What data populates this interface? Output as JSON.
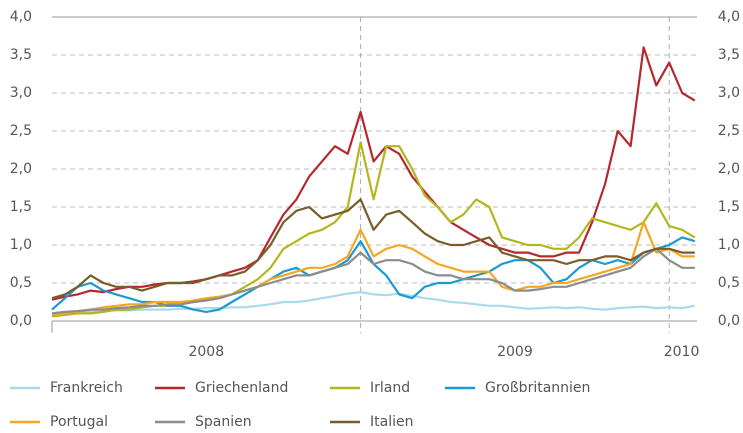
{
  "chart_data": {
    "type": "line",
    "x": [
      2008.0,
      2008.042,
      2008.083,
      2008.125,
      2008.167,
      2008.208,
      2008.25,
      2008.292,
      2008.333,
      2008.375,
      2008.417,
      2008.458,
      2008.5,
      2008.542,
      2008.583,
      2008.625,
      2008.667,
      2008.708,
      2008.75,
      2008.792,
      2008.833,
      2008.875,
      2008.917,
      2008.958,
      2009.0,
      2009.042,
      2009.083,
      2009.125,
      2009.167,
      2009.208,
      2009.25,
      2009.292,
      2009.333,
      2009.375,
      2009.417,
      2009.458,
      2009.5,
      2009.542,
      2009.583,
      2009.625,
      2009.667,
      2009.708,
      2009.75,
      2009.792,
      2009.833,
      2009.875,
      2009.917,
      2009.958,
      2010.0,
      2010.042,
      2010.083
    ],
    "series": [
      {
        "name": "Frankreich",
        "color": "#a9d9ec",
        "values": [
          0.08,
          0.1,
          0.12,
          0.12,
          0.13,
          0.14,
          0.14,
          0.15,
          0.15,
          0.15,
          0.16,
          0.16,
          0.17,
          0.17,
          0.18,
          0.18,
          0.2,
          0.22,
          0.25,
          0.25,
          0.27,
          0.3,
          0.33,
          0.36,
          0.38,
          0.35,
          0.34,
          0.36,
          0.33,
          0.3,
          0.28,
          0.25,
          0.24,
          0.22,
          0.2,
          0.2,
          0.18,
          0.16,
          0.17,
          0.18,
          0.17,
          0.18,
          0.16,
          0.15,
          0.17,
          0.18,
          0.19,
          0.17,
          0.18,
          0.17,
          0.2
        ]
      },
      {
        "name": "Griechenland",
        "color": "#b5282e",
        "values": [
          0.28,
          0.32,
          0.35,
          0.4,
          0.38,
          0.42,
          0.45,
          0.45,
          0.48,
          0.5,
          0.5,
          0.52,
          0.55,
          0.6,
          0.65,
          0.7,
          0.8,
          1.1,
          1.4,
          1.6,
          1.9,
          2.1,
          2.3,
          2.2,
          2.75,
          2.1,
          2.3,
          2.2,
          1.9,
          1.7,
          1.5,
          1.3,
          1.2,
          1.1,
          1.0,
          0.95,
          0.9,
          0.9,
          0.85,
          0.85,
          0.9,
          0.9,
          1.3,
          1.8,
          2.5,
          2.3,
          3.6,
          3.1,
          3.4,
          3.0,
          2.9
        ]
      },
      {
        "name": "Irland",
        "color": "#b3b61c",
        "values": [
          0.06,
          0.08,
          0.1,
          0.1,
          0.12,
          0.15,
          0.15,
          0.18,
          0.2,
          0.2,
          0.22,
          0.25,
          0.28,
          0.3,
          0.35,
          0.45,
          0.55,
          0.7,
          0.95,
          1.05,
          1.15,
          1.2,
          1.3,
          1.5,
          2.35,
          1.6,
          2.3,
          2.3,
          2.0,
          1.65,
          1.5,
          1.3,
          1.4,
          1.6,
          1.5,
          1.1,
          1.05,
          1.0,
          1.0,
          0.95,
          0.95,
          1.1,
          1.35,
          1.3,
          1.25,
          1.2,
          1.3,
          1.55,
          1.25,
          1.2,
          1.1
        ]
      },
      {
        "name": "Großbritannien",
        "color": "#1b9ad2",
        "values": [
          0.15,
          0.3,
          0.45,
          0.5,
          0.4,
          0.35,
          0.3,
          0.25,
          0.25,
          0.2,
          0.2,
          0.15,
          0.12,
          0.15,
          0.25,
          0.35,
          0.45,
          0.55,
          0.65,
          0.7,
          0.6,
          0.65,
          0.7,
          0.8,
          1.05,
          0.75,
          0.6,
          0.35,
          0.3,
          0.45,
          0.5,
          0.5,
          0.55,
          0.6,
          0.65,
          0.75,
          0.8,
          0.8,
          0.7,
          0.5,
          0.55,
          0.7,
          0.8,
          0.75,
          0.8,
          0.75,
          0.9,
          0.95,
          1.0,
          1.1,
          1.05
        ]
      },
      {
        "name": "Portugal",
        "color": "#f5a623",
        "values": [
          0.08,
          0.1,
          0.12,
          0.15,
          0.18,
          0.2,
          0.22,
          0.22,
          0.25,
          0.25,
          0.25,
          0.27,
          0.3,
          0.32,
          0.35,
          0.4,
          0.45,
          0.55,
          0.6,
          0.65,
          0.7,
          0.7,
          0.75,
          0.85,
          1.2,
          0.85,
          0.95,
          1.0,
          0.95,
          0.85,
          0.75,
          0.7,
          0.65,
          0.65,
          0.65,
          0.45,
          0.4,
          0.45,
          0.45,
          0.5,
          0.5,
          0.55,
          0.6,
          0.65,
          0.7,
          0.75,
          1.3,
          0.9,
          0.95,
          0.85,
          0.85
        ]
      },
      {
        "name": "Spanien",
        "color": "#8c8c8c",
        "values": [
          0.1,
          0.12,
          0.13,
          0.15,
          0.15,
          0.17,
          0.18,
          0.2,
          0.2,
          0.22,
          0.22,
          0.25,
          0.27,
          0.3,
          0.35,
          0.4,
          0.45,
          0.5,
          0.55,
          0.6,
          0.6,
          0.65,
          0.7,
          0.75,
          0.9,
          0.75,
          0.8,
          0.8,
          0.75,
          0.65,
          0.6,
          0.6,
          0.55,
          0.55,
          0.55,
          0.5,
          0.4,
          0.4,
          0.42,
          0.45,
          0.45,
          0.5,
          0.55,
          0.6,
          0.65,
          0.7,
          0.85,
          0.95,
          0.8,
          0.7,
          0.7
        ]
      },
      {
        "name": "Italien",
        "color": "#7a5c2a",
        "values": [
          0.3,
          0.35,
          0.45,
          0.6,
          0.5,
          0.45,
          0.45,
          0.4,
          0.45,
          0.5,
          0.5,
          0.5,
          0.55,
          0.6,
          0.6,
          0.65,
          0.8,
          1.0,
          1.3,
          1.45,
          1.5,
          1.35,
          1.4,
          1.45,
          1.6,
          1.2,
          1.4,
          1.45,
          1.3,
          1.15,
          1.05,
          1.0,
          1.0,
          1.05,
          1.1,
          0.9,
          0.85,
          0.8,
          0.8,
          0.8,
          0.75,
          0.8,
          0.8,
          0.85,
          0.85,
          0.8,
          0.9,
          0.95,
          0.95,
          0.9,
          0.9
        ]
      }
    ],
    "xlim": [
      2008,
      2010.09
    ],
    "xticks": [
      {
        "value": 2008.5,
        "label": "2008"
      },
      {
        "value": 2009.5,
        "label": "2009"
      },
      {
        "value": 2010.04,
        "label": "2010"
      }
    ],
    "xgrid": [
      2009,
      2010
    ],
    "ylim": [
      0,
      4
    ],
    "yticks": [
      {
        "value": 0,
        "label": "0,0"
      },
      {
        "value": 0.5,
        "label": "0,5"
      },
      {
        "value": 1,
        "label": "1,0"
      },
      {
        "value": 1.5,
        "label": "1,5"
      },
      {
        "value": 2,
        "label": "2,0"
      },
      {
        "value": 2.5,
        "label": "2,5"
      },
      {
        "value": 3,
        "label": "3,0"
      },
      {
        "value": 3.5,
        "label": "3,5"
      },
      {
        "value": 4,
        "label": "4,0"
      }
    ],
    "y2lim": [
      0,
      4
    ],
    "y2ticks": [
      {
        "value": 0,
        "label": "0,0"
      },
      {
        "value": 0.5,
        "label": "0,5"
      },
      {
        "value": 1,
        "label": "1,0"
      },
      {
        "value": 1.5,
        "label": "1,5"
      },
      {
        "value": 2,
        "label": "2,0"
      },
      {
        "value": 2.5,
        "label": "2,5"
      },
      {
        "value": 3,
        "label": "3,0"
      },
      {
        "value": 3.5,
        "label": "3,5"
      },
      {
        "value": 4,
        "label": "4,0"
      }
    ],
    "grid": true
  }
}
